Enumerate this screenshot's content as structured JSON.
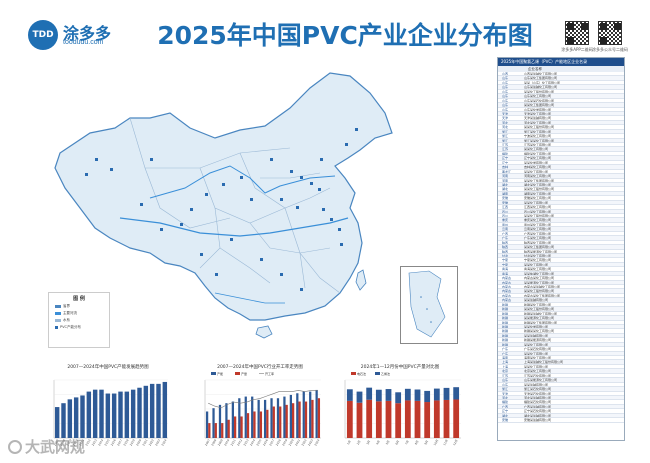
{
  "header": {
    "logo_badge": "TDD",
    "brand_name": "涂多多",
    "brand_url": "toodudu.com",
    "title": "2025年中国PVC产业企业分布图",
    "qr_codes": [
      {
        "caption": "涂多多APP二维码"
      },
      {
        "caption": "涂多多公众号二维码"
      }
    ]
  },
  "legend": {
    "title": "图 例",
    "items": [
      "省界",
      "主要河流",
      "水系",
      "PVC产能分布"
    ]
  },
  "side_panel": {
    "heading": "2025年中国聚氯乙烯（PVC）产能地区企业名录",
    "subheading": "企业名称",
    "rows": [
      {
        "prov": "山西",
        "name": "山西某氯碱化工有限公司"
      },
      {
        "prov": "山东",
        "name": "山东某化工集团有限公司"
      },
      {
        "prov": "山东",
        "name": "某某（山东）化工有限公司"
      },
      {
        "prov": "山东",
        "name": "山东某氯碱化工有限公司"
      },
      {
        "prov": "山东",
        "name": "某某化工股份有限公司"
      },
      {
        "prov": "山东",
        "name": "山东某化工有限公司"
      },
      {
        "prov": "山东",
        "name": "山东某某石化有限公司"
      },
      {
        "prov": "山东",
        "name": "某某化工集团有限公司"
      },
      {
        "prov": "山东",
        "name": "山东某化学有限公司"
      },
      {
        "prov": "天津",
        "name": "天津某化工有限公司"
      },
      {
        "prov": "天津",
        "name": "天津某氯碱有限公司"
      },
      {
        "prov": "河北",
        "name": "河北某化工有限公司"
      },
      {
        "prov": "河北",
        "name": "某某化工股份有限公司"
      },
      {
        "prov": "浙江",
        "name": "浙江某化工有限公司"
      },
      {
        "prov": "浙江",
        "name": "宁波某化工有限公司"
      },
      {
        "prov": "浙江",
        "name": "浙江某某化工有限公司"
      },
      {
        "prov": "江苏",
        "name": "江苏某化工有限公司"
      },
      {
        "prov": "江苏",
        "name": "某某化工有限公司"
      },
      {
        "prov": "福建",
        "name": "福建某化工有限公司"
      },
      {
        "prov": "辽宁",
        "name": "辽宁某化工有限公司"
      },
      {
        "prov": "辽宁",
        "name": "某某化学有限公司"
      },
      {
        "prov": "吉林",
        "name": "吉林某化工有限公司"
      },
      {
        "prov": "黑龙江",
        "name": "某某化工有限公司"
      },
      {
        "prov": "河南",
        "name": "河南某化工有限公司"
      },
      {
        "prov": "河南",
        "name": "某某化工集团有限公司"
      },
      {
        "prov": "湖北",
        "name": "湖北某化工有限公司"
      },
      {
        "prov": "湖北",
        "name": "某某化工股份有限公司"
      },
      {
        "prov": "湖南",
        "name": "湖南某化工有限公司"
      },
      {
        "prov": "安徽",
        "name": "安徽某化工有限公司"
      },
      {
        "prov": "安徽",
        "name": "某某化工有限公司"
      },
      {
        "prov": "江西",
        "name": "江西某化工有限公司"
      },
      {
        "prov": "四川",
        "name": "四川某化工有限公司"
      },
      {
        "prov": "四川",
        "name": "某某化工股份有限公司"
      },
      {
        "prov": "重庆",
        "name": "重庆某化工有限公司"
      },
      {
        "prov": "贵州",
        "name": "贵州某化工有限公司"
      },
      {
        "prov": "云南",
        "name": "云南某化工有限公司"
      },
      {
        "prov": "广西",
        "name": "广西某化工有限公司"
      },
      {
        "prov": "广东",
        "name": "广东某化工有限公司"
      },
      {
        "prov": "陕西",
        "name": "陕西某化工有限公司"
      },
      {
        "prov": "陕西",
        "name": "某某化工集团有限公司"
      },
      {
        "prov": "陕西",
        "name": "陕西某能源化工有限公司"
      },
      {
        "prov": "甘肃",
        "name": "甘肃某化工有限公司"
      },
      {
        "prov": "宁夏",
        "name": "宁夏某化工有限公司"
      },
      {
        "prov": "宁夏",
        "name": "某某化工有限公司"
      },
      {
        "prov": "青海",
        "name": "青海某化工有限公司"
      },
      {
        "prov": "青海",
        "name": "某某盐湖化工有限公司"
      },
      {
        "prov": "内蒙古",
        "name": "内蒙古某化工有限公司"
      },
      {
        "prov": "内蒙古",
        "name": "某某能源化工有限公司"
      },
      {
        "prov": "内蒙古",
        "name": "内蒙古某氯碱化工有限公司"
      },
      {
        "prov": "内蒙古",
        "name": "某某化工股份有限公司"
      },
      {
        "prov": "内蒙古",
        "name": "内蒙古某化工集团有限公司"
      },
      {
        "prov": "内蒙古",
        "name": "某某氯碱有限公司"
      },
      {
        "prov": "新疆",
        "name": "新疆某化工有限公司"
      },
      {
        "prov": "新疆",
        "name": "某某化工股份有限公司"
      },
      {
        "prov": "新疆",
        "name": "新疆某氯碱化工有限公司"
      },
      {
        "prov": "新疆",
        "name": "某某能源化工有限公司"
      },
      {
        "prov": "新疆",
        "name": "新疆某化工集团有限公司"
      },
      {
        "prov": "新疆",
        "name": "某某化学有限公司"
      },
      {
        "prov": "新疆",
        "name": "新疆某某化工有限公司"
      },
      {
        "prov": "新疆",
        "name": "某某氯碱有限公司"
      },
      {
        "prov": "新疆",
        "name": "新疆某能源有限公司"
      },
      {
        "prov": "新疆",
        "name": "某某化工有限公司"
      },
      {
        "prov": "广东",
        "name": "广东某石化有限公司"
      },
      {
        "prov": "广东",
        "name": "某某化工有限公司"
      },
      {
        "prov": "海南",
        "name": "海南某化工有限公司"
      },
      {
        "prov": "上海",
        "name": "上海某氯碱化工股份有限公司"
      },
      {
        "prov": "上海",
        "name": "某某化工有限公司"
      },
      {
        "prov": "北京",
        "name": "北京某化工有限公司"
      },
      {
        "prov": "江苏",
        "name": "江苏某石化有限公司"
      },
      {
        "prov": "山东",
        "name": "山东某能源化工有限公司"
      },
      {
        "prov": "山东",
        "name": "某某氯碱有限公司"
      },
      {
        "prov": "浙江",
        "name": "浙江某石化有限公司"
      },
      {
        "prov": "天津",
        "name": "天津某石化有限公司"
      },
      {
        "prov": "河北",
        "name": "河北某氯碱有限公司"
      },
      {
        "prov": "福建",
        "name": "福建某石化有限公司"
      },
      {
        "prov": "广西",
        "name": "广西某氯碱有限公司"
      },
      {
        "prov": "辽宁",
        "name": "辽宁某石化有限公司"
      },
      {
        "prov": "湖北",
        "name": "湖北某氯碱有限公司"
      },
      {
        "prov": "安徽",
        "name": "安徽某氯碱有限公司"
      }
    ]
  },
  "chart_data": [
    {
      "type": "bar",
      "title": "2007—2024年中国PVC产能发展趋势图",
      "categories": [
        "2007",
        "2008",
        "2009",
        "2010",
        "2011",
        "2012",
        "2013",
        "2014",
        "2015",
        "2016",
        "2017",
        "2018",
        "2019",
        "2020",
        "2021",
        "2022",
        "2023",
        "2024"
      ],
      "series": [
        {
          "name": "",
          "values": [
            16,
            18,
            20,
            21,
            22,
            24,
            25,
            25,
            23,
            23,
            24,
            24,
            25,
            26,
            27,
            28,
            28,
            29
          ]
        }
      ],
      "ylim": [
        0,
        30
      ],
      "colors": [
        "#2e5a96"
      ]
    },
    {
      "type": "bar",
      "title": "2007—2024年中国PVC行业开工率走势图",
      "categories": [
        "2007",
        "2008",
        "2009",
        "2010",
        "2011",
        "2012",
        "2013",
        "2014",
        "2015",
        "2016",
        "2017",
        "2018",
        "2019",
        "2020",
        "2021",
        "2022",
        "2023",
        "2024"
      ],
      "series": [
        {
          "name": "产能",
          "values": [
            16,
            18,
            20,
            21,
            22,
            24,
            25,
            25,
            23,
            23,
            24,
            24,
            25,
            26,
            27,
            28,
            28,
            29
          ]
        },
        {
          "name": "产量",
          "values": [
            9,
            9,
            9,
            11,
            13,
            13,
            15,
            16,
            16,
            17,
            19,
            19,
            20,
            21,
            22,
            22,
            23,
            24
          ]
        }
      ],
      "line": {
        "name": "开工率",
        "values": [
          60,
          55,
          52,
          58,
          62,
          60,
          62,
          66,
          68,
          72,
          76,
          80,
          80,
          80,
          82,
          80,
          82,
          82
        ]
      },
      "ylim": [
        0,
        35
      ],
      "colors": [
        "#2e5a96",
        "#c0392b"
      ]
    },
    {
      "type": "bar",
      "title": "2024年1—12月份中国PVC产量对比图",
      "categories": [
        "1月",
        "2月",
        "3月",
        "4月",
        "5月",
        "6月",
        "7月",
        "8月",
        "9月",
        "10月",
        "11月",
        "12月"
      ],
      "series": [
        {
          "name": "电石法",
          "values": [
            160,
            152,
            165,
            158,
            160,
            150,
            162,
            160,
            155,
            162,
            164,
            166
          ]
        },
        {
          "name": "乙烯法",
          "values": [
            50,
            48,
            52,
            50,
            51,
            47,
            50,
            49,
            48,
            51,
            52,
            53
          ]
        }
      ],
      "ylim": [
        0,
        250
      ],
      "colors": [
        "#c0392b",
        "#2e5a96"
      ]
    }
  ],
  "watermark": {
    "text": "大武网规"
  }
}
